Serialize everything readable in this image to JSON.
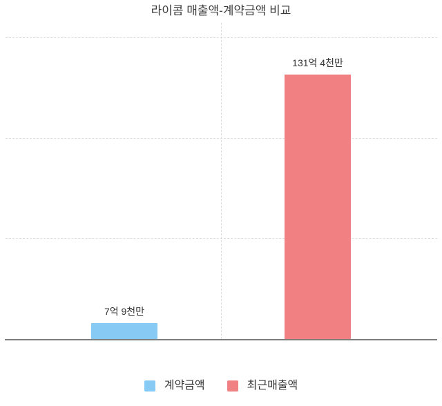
{
  "page": {
    "background_color": "#ffffff"
  },
  "chart_data": {
    "type": "bar",
    "title": "라이콤 매출액-계약금액 비교",
    "categories": [
      "계약금액",
      "최근매출액"
    ],
    "values": [
      790000000,
      13140000000
    ],
    "values_eok": [
      7.9,
      131.4
    ],
    "value_labels": [
      "7억 9천만",
      "131억 4천만"
    ],
    "colors": [
      "#87CBF5",
      "#F08081"
    ],
    "xlabel": "",
    "ylabel": "",
    "ylim": [
      0,
      152
    ],
    "gridline_values_eok": [
      50,
      100,
      150
    ],
    "grid": "horizontal-dashed-with-center-vertical-dashed",
    "axis_line_color": "#7d7d7d",
    "gridline_color": "#dedede",
    "legend": {
      "position": "bottom",
      "items": [
        {
          "label": "계약금액",
          "color": "#87CBF5"
        },
        {
          "label": "최근매출액",
          "color": "#F08081"
        }
      ]
    }
  }
}
